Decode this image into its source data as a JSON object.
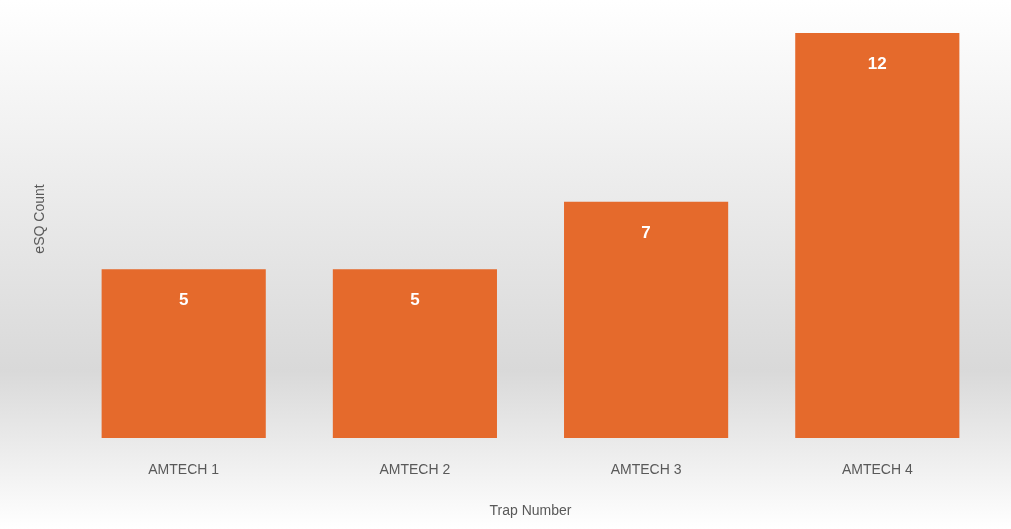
{
  "chart_data": {
    "type": "bar",
    "xlabel": "Trap Number",
    "ylabel": "eSQ Count",
    "categories": [
      "AMTECH 1",
      "AMTECH 2",
      "AMTECH 3",
      "AMTECH 4"
    ],
    "values": [
      5,
      5,
      7,
      12
    ],
    "color": "#e56a2c",
    "data_labels": true
  }
}
